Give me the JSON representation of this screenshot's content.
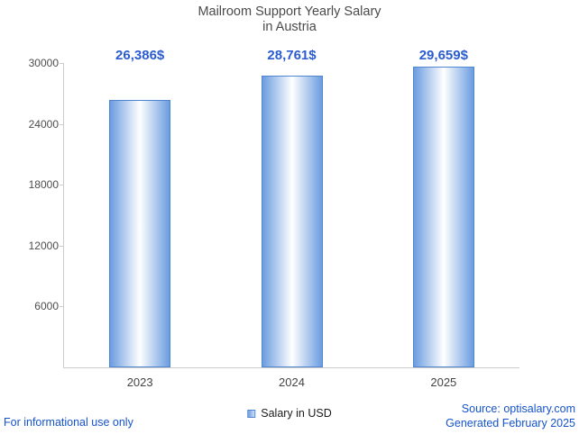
{
  "header": {
    "title": "Mailroom Support Yearly Salary\nin Austria"
  },
  "chart_data": {
    "type": "bar",
    "title": "Mailroom Support Yearly Salary in Austria",
    "categories": [
      "2023",
      "2024",
      "2025"
    ],
    "series": [
      {
        "name": "Salary in USD",
        "values": [
          26386,
          28761,
          29659
        ]
      }
    ],
    "value_labels": [
      "26,386$",
      "28,761$",
      "29,659$"
    ],
    "ylim": [
      0,
      30000
    ],
    "yticks": [
      6000,
      12000,
      18000,
      24000,
      30000
    ],
    "grid": false,
    "legend_position": "bottom",
    "colors": {
      "bar_edge": "#6b9ce0",
      "bar_center": "#ffffff",
      "bar_border": "#4f86cf",
      "value_label": "#2a5cd0",
      "axis_line": "#cccccc",
      "footer_link": "#1553cc"
    }
  },
  "footer": {
    "note": "For informational use only",
    "source": "Source: optisalary.com",
    "generated": "Generated February 2025"
  }
}
